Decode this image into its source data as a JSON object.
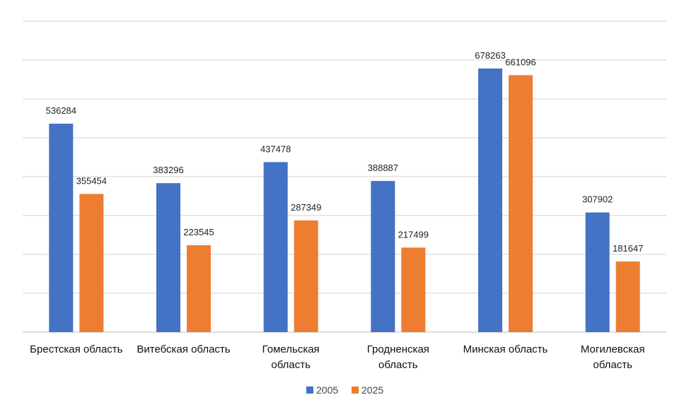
{
  "chart_data": {
    "type": "bar",
    "title": "",
    "xlabel": "",
    "ylabel": "",
    "ylim": [
      0,
      800000
    ],
    "grid": true,
    "legend_position": "bottom",
    "categories": [
      [
        "Брестская область"
      ],
      [
        "Витебская область"
      ],
      [
        "Гомельская",
        "область"
      ],
      [
        "Гродненская",
        "область"
      ],
      [
        "Минская область"
      ],
      [
        "Могилевская",
        "область"
      ]
    ],
    "series": [
      {
        "name": "2005",
        "color": "#4472C4",
        "values": [
          536284,
          383296,
          437478,
          388887,
          678263,
          307902
        ]
      },
      {
        "name": "2025",
        "color": "#ED7D31",
        "values": [
          355454,
          223545,
          287349,
          217499,
          661096,
          181647
        ]
      }
    ]
  }
}
